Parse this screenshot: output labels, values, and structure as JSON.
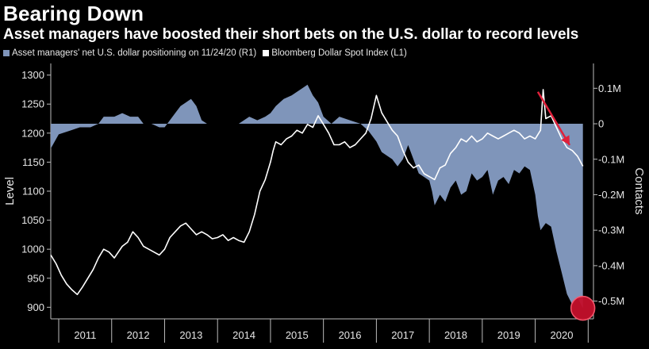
{
  "colors": {
    "background": "#000000",
    "positioning_fill": "#7f95ba",
    "index_line": "#ffffff",
    "arrow": "#e0203a",
    "marker_fill": "#c4102c",
    "text": "#e6e6e6"
  },
  "chart_data": {
    "type": "area",
    "title": "Bearing Down",
    "subtitle": "Asset managers have boosted their short bets on the U.S. dollar to record levels",
    "legend": [
      {
        "name": "Asset managers' net U.S. dollar positioning on 11/24/20 (R1)",
        "color": "#7f95ba"
      },
      {
        "name": "Bloomberg Dollar Spot Index (L1)",
        "color": "#ffffff"
      }
    ],
    "x_range": [
      2010.85,
      2021.1
    ],
    "x_ticks": [
      "2011",
      "2012",
      "2013",
      "2014",
      "2015",
      "2016",
      "2017",
      "2018",
      "2019",
      "2020"
    ],
    "left_axis": {
      "label": "Level",
      "range": [
        880,
        1320
      ],
      "ticks": [
        900,
        950,
        1000,
        1050,
        1100,
        1150,
        1200,
        1250,
        1300
      ]
    },
    "right_axis": {
      "label": "Contacts",
      "range": [
        -0.55,
        0.17
      ],
      "ticks": [
        0.1,
        0,
        -0.1,
        -0.2,
        -0.3,
        -0.4,
        -0.5
      ],
      "tick_labels": [
        "0.1M",
        "0",
        "-0.1M",
        "-0.2M",
        "-0.3M",
        "-0.4M",
        "-0.5M"
      ]
    },
    "series": [
      {
        "name": "Asset managers' net U.S. dollar positioning on 11/24/20 (R1)",
        "axis": "right",
        "x": [
          2010.85,
          2011.0,
          2011.2,
          2011.4,
          2011.6,
          2011.75,
          2011.85,
          2011.95,
          2012.05,
          2012.2,
          2012.35,
          2012.5,
          2012.6,
          2012.75,
          2012.9,
          2013.0,
          2013.1,
          2013.2,
          2013.3,
          2013.4,
          2013.5,
          2013.6,
          2013.7,
          2013.8,
          2013.9,
          2014.0,
          2014.2,
          2014.4,
          2014.6,
          2014.75,
          2014.9,
          2015.0,
          2015.1,
          2015.25,
          2015.4,
          2015.5,
          2015.6,
          2015.7,
          2015.8,
          2015.9,
          2016.0,
          2016.15,
          2016.3,
          2016.5,
          2016.7,
          2016.85,
          2017.0,
          2017.1,
          2017.2,
          2017.3,
          2017.4,
          2017.5,
          2017.6,
          2017.7,
          2017.8,
          2017.9,
          2018.0,
          2018.05,
          2018.1,
          2018.2,
          2018.3,
          2018.4,
          2018.5,
          2018.6,
          2018.7,
          2018.8,
          2018.9,
          2019.0,
          2019.1,
          2019.2,
          2019.3,
          2019.4,
          2019.5,
          2019.6,
          2019.7,
          2019.8,
          2019.9,
          2020.0,
          2020.05,
          2020.1,
          2020.2,
          2020.3,
          2020.4,
          2020.5,
          2020.6,
          2020.7,
          2020.8,
          2020.9
        ],
        "values": [
          -0.07,
          -0.03,
          -0.02,
          -0.01,
          -0.01,
          0.0,
          0.02,
          0.02,
          0.02,
          0.03,
          0.02,
          0.02,
          0.0,
          0.0,
          -0.01,
          -0.01,
          0.01,
          0.03,
          0.05,
          0.06,
          0.07,
          0.05,
          0.01,
          0.0,
          0.0,
          0.0,
          0.0,
          0.0,
          0.02,
          0.01,
          0.02,
          0.03,
          0.05,
          0.07,
          0.08,
          0.09,
          0.1,
          0.11,
          0.08,
          0.06,
          0.02,
          0.0,
          0.02,
          0.01,
          0.0,
          -0.02,
          -0.05,
          -0.08,
          -0.09,
          -0.1,
          -0.12,
          -0.1,
          -0.06,
          -0.1,
          -0.14,
          -0.15,
          -0.16,
          -0.19,
          -0.23,
          -0.2,
          -0.22,
          -0.18,
          -0.16,
          -0.2,
          -0.19,
          -0.14,
          -0.16,
          -0.15,
          -0.13,
          -0.2,
          -0.16,
          -0.15,
          -0.17,
          -0.13,
          -0.14,
          -0.12,
          -0.13,
          -0.2,
          -0.26,
          -0.3,
          -0.28,
          -0.29,
          -0.36,
          -0.42,
          -0.48,
          -0.51,
          -0.49,
          -0.52
        ]
      },
      {
        "name": "Bloomberg Dollar Spot Index (L1)",
        "axis": "left",
        "x": [
          2010.85,
          2010.95,
          2011.05,
          2011.15,
          2011.25,
          2011.35,
          2011.45,
          2011.55,
          2011.65,
          2011.75,
          2011.85,
          2011.95,
          2012.05,
          2012.2,
          2012.3,
          2012.4,
          2012.5,
          2012.6,
          2012.7,
          2012.8,
          2012.9,
          2013.0,
          2013.1,
          2013.2,
          2013.3,
          2013.4,
          2013.5,
          2013.6,
          2013.7,
          2013.8,
          2013.9,
          2014.0,
          2014.1,
          2014.2,
          2014.3,
          2014.4,
          2014.5,
          2014.6,
          2014.7,
          2014.8,
          2014.9,
          2015.0,
          2015.05,
          2015.1,
          2015.2,
          2015.3,
          2015.4,
          2015.5,
          2015.6,
          2015.7,
          2015.8,
          2015.9,
          2016.0,
          2016.1,
          2016.2,
          2016.3,
          2016.4,
          2016.5,
          2016.6,
          2016.7,
          2016.8,
          2016.9,
          2017.0,
          2017.1,
          2017.2,
          2017.3,
          2017.4,
          2017.5,
          2017.6,
          2017.7,
          2017.8,
          2017.9,
          2018.0,
          2018.1,
          2018.2,
          2018.3,
          2018.4,
          2018.5,
          2018.6,
          2018.7,
          2018.8,
          2018.9,
          2019.0,
          2019.1,
          2019.2,
          2019.3,
          2019.4,
          2019.5,
          2019.6,
          2019.7,
          2019.8,
          2019.9,
          2020.0,
          2020.1,
          2020.15,
          2020.2,
          2020.3,
          2020.4,
          2020.5,
          2020.6,
          2020.7,
          2020.8,
          2020.9
        ],
        "values": [
          990,
          975,
          955,
          940,
          930,
          922,
          935,
          950,
          965,
          985,
          1000,
          995,
          985,
          1005,
          1012,
          1030,
          1020,
          1005,
          1000,
          995,
          990,
          1000,
          1020,
          1030,
          1040,
          1045,
          1035,
          1025,
          1030,
          1025,
          1018,
          1020,
          1025,
          1015,
          1020,
          1015,
          1012,
          1030,
          1060,
          1100,
          1120,
          1150,
          1170,
          1185,
          1180,
          1190,
          1195,
          1205,
          1200,
          1215,
          1210,
          1230,
          1215,
          1200,
          1180,
          1180,
          1185,
          1175,
          1180,
          1190,
          1200,
          1225,
          1265,
          1235,
          1220,
          1205,
          1195,
          1170,
          1150,
          1140,
          1145,
          1130,
          1125,
          1120,
          1140,
          1145,
          1165,
          1175,
          1190,
          1185,
          1195,
          1185,
          1190,
          1200,
          1195,
          1190,
          1195,
          1200,
          1205,
          1200,
          1190,
          1195,
          1190,
          1205,
          1275,
          1225,
          1230,
          1210,
          1190,
          1175,
          1170,
          1160,
          1143
        ]
      }
    ],
    "annotations": [
      {
        "type": "arrow",
        "color": "#e0203a",
        "from": [
          2020.05,
          0.09
        ],
        "to": [
          2020.65,
          -0.06
        ]
      },
      {
        "type": "circle-marker",
        "color": "#c4102c",
        "at": [
          2020.9,
          -0.52
        ]
      }
    ]
  }
}
